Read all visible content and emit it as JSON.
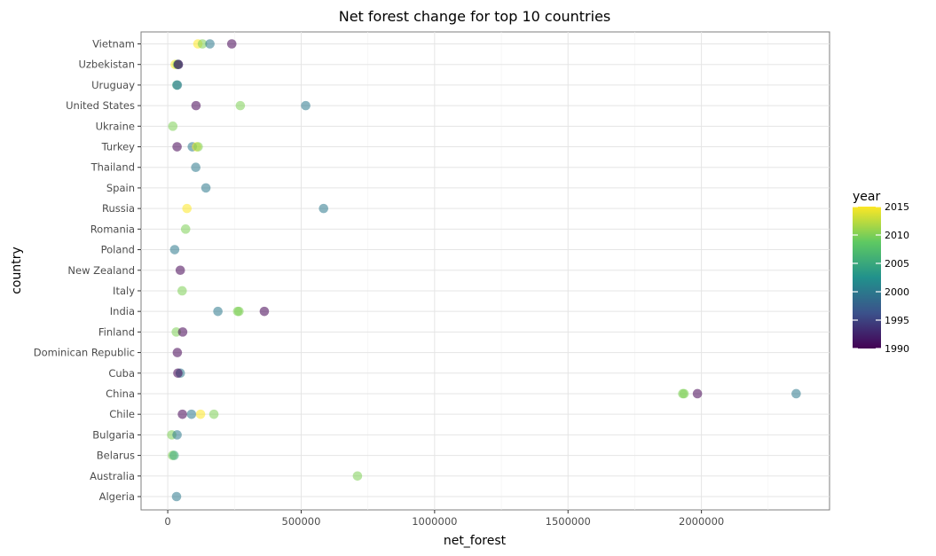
{
  "chart_data": {
    "type": "scatter",
    "title": "Net forest change for top 10 countries",
    "xlabel": "net_forest",
    "ylabel": "country",
    "xlim": [
      -100000,
      2480000
    ],
    "xticks": [
      0,
      500000,
      1000000,
      1500000,
      2000000
    ],
    "xtick_labels": [
      "0",
      "500000",
      "1000000",
      "1500000",
      "2000000"
    ],
    "categories": [
      "Algeria",
      "Australia",
      "Belarus",
      "Bulgaria",
      "Chile",
      "China",
      "Cuba",
      "Dominican Republic",
      "Finland",
      "India",
      "Italy",
      "New Zealand",
      "Poland",
      "Romania",
      "Russia",
      "Spain",
      "Thailand",
      "Turkey",
      "Ukraine",
      "United States",
      "Uruguay",
      "Uzbekistan",
      "Vietnam"
    ],
    "grid": true,
    "color_scale": {
      "title": "year",
      "min": 1990,
      "max": 2015,
      "ticks": [
        1990,
        1995,
        2000,
        2005,
        2010,
        2015
      ],
      "colors": [
        "#440154",
        "#3b528b",
        "#21918c",
        "#5ec962",
        "#fde725"
      ]
    },
    "points": [
      {
        "country": "Vietnam",
        "year": 2015,
        "x": 113000
      },
      {
        "country": "Vietnam",
        "year": 2010,
        "x": 130000
      },
      {
        "country": "Vietnam",
        "year": 2000,
        "x": 158000
      },
      {
        "country": "Vietnam",
        "year": 1990,
        "x": 240000
      },
      {
        "country": "Uzbekistan",
        "year": 2015,
        "x": 28000
      },
      {
        "country": "Uzbekistan",
        "year": 2010,
        "x": 36000
      },
      {
        "country": "Uzbekistan",
        "year": 2000,
        "x": 39000
      },
      {
        "country": "Uzbekistan",
        "year": 1990,
        "x": 40000
      },
      {
        "country": "Uruguay",
        "year": 2005,
        "x": 34000
      },
      {
        "country": "Uruguay",
        "year": 2000,
        "x": 36000
      },
      {
        "country": "United States",
        "year": 1990,
        "x": 106000
      },
      {
        "country": "United States",
        "year": 2010,
        "x": 272000
      },
      {
        "country": "United States",
        "year": 2000,
        "x": 517000
      },
      {
        "country": "Ukraine",
        "year": 2010,
        "x": 19000
      },
      {
        "country": "Turkey",
        "year": 1990,
        "x": 35000
      },
      {
        "country": "Turkey",
        "year": 2000,
        "x": 92000
      },
      {
        "country": "Turkey",
        "year": 2015,
        "x": 108000
      },
      {
        "country": "Turkey",
        "year": 2010,
        "x": 114000
      },
      {
        "country": "Thailand",
        "year": 2000,
        "x": 105000
      },
      {
        "country": "Spain",
        "year": 2000,
        "x": 143000
      },
      {
        "country": "Russia",
        "year": 2015,
        "x": 72000
      },
      {
        "country": "Russia",
        "year": 2000,
        "x": 584000
      },
      {
        "country": "Romania",
        "year": 2010,
        "x": 67000
      },
      {
        "country": "Poland",
        "year": 2000,
        "x": 26000
      },
      {
        "country": "New Zealand",
        "year": 1990,
        "x": 47000
      },
      {
        "country": "Italy",
        "year": 2010,
        "x": 54000
      },
      {
        "country": "India",
        "year": 2000,
        "x": 188000
      },
      {
        "country": "India",
        "year": 2010,
        "x": 262000
      },
      {
        "country": "India",
        "year": 2010,
        "x": 267000
      },
      {
        "country": "India",
        "year": 1990,
        "x": 362000
      },
      {
        "country": "Finland",
        "year": 2010,
        "x": 32000
      },
      {
        "country": "Finland",
        "year": 1990,
        "x": 56000
      },
      {
        "country": "Dominican Republic",
        "year": 1990,
        "x": 36000
      },
      {
        "country": "Cuba",
        "year": 2000,
        "x": 47000
      },
      {
        "country": "Cuba",
        "year": 1990,
        "x": 38000
      },
      {
        "country": "China",
        "year": 2010,
        "x": 1930000
      },
      {
        "country": "China",
        "year": 2010,
        "x": 1935000
      },
      {
        "country": "China",
        "year": 1990,
        "x": 1985000
      },
      {
        "country": "China",
        "year": 2000,
        "x": 2355000
      },
      {
        "country": "Chile",
        "year": 1990,
        "x": 55000
      },
      {
        "country": "Chile",
        "year": 2000,
        "x": 89000
      },
      {
        "country": "Chile",
        "year": 2015,
        "x": 123000
      },
      {
        "country": "Chile",
        "year": 2010,
        "x": 173000
      },
      {
        "country": "Bulgaria",
        "year": 2010,
        "x": 15000
      },
      {
        "country": "Bulgaria",
        "year": 2000,
        "x": 35000
      },
      {
        "country": "Belarus",
        "year": 2010,
        "x": 18000
      },
      {
        "country": "Belarus",
        "year": 2005,
        "x": 24000
      },
      {
        "country": "Australia",
        "year": 2010,
        "x": 711000
      },
      {
        "country": "Algeria",
        "year": 2000,
        "x": 33000
      }
    ]
  }
}
